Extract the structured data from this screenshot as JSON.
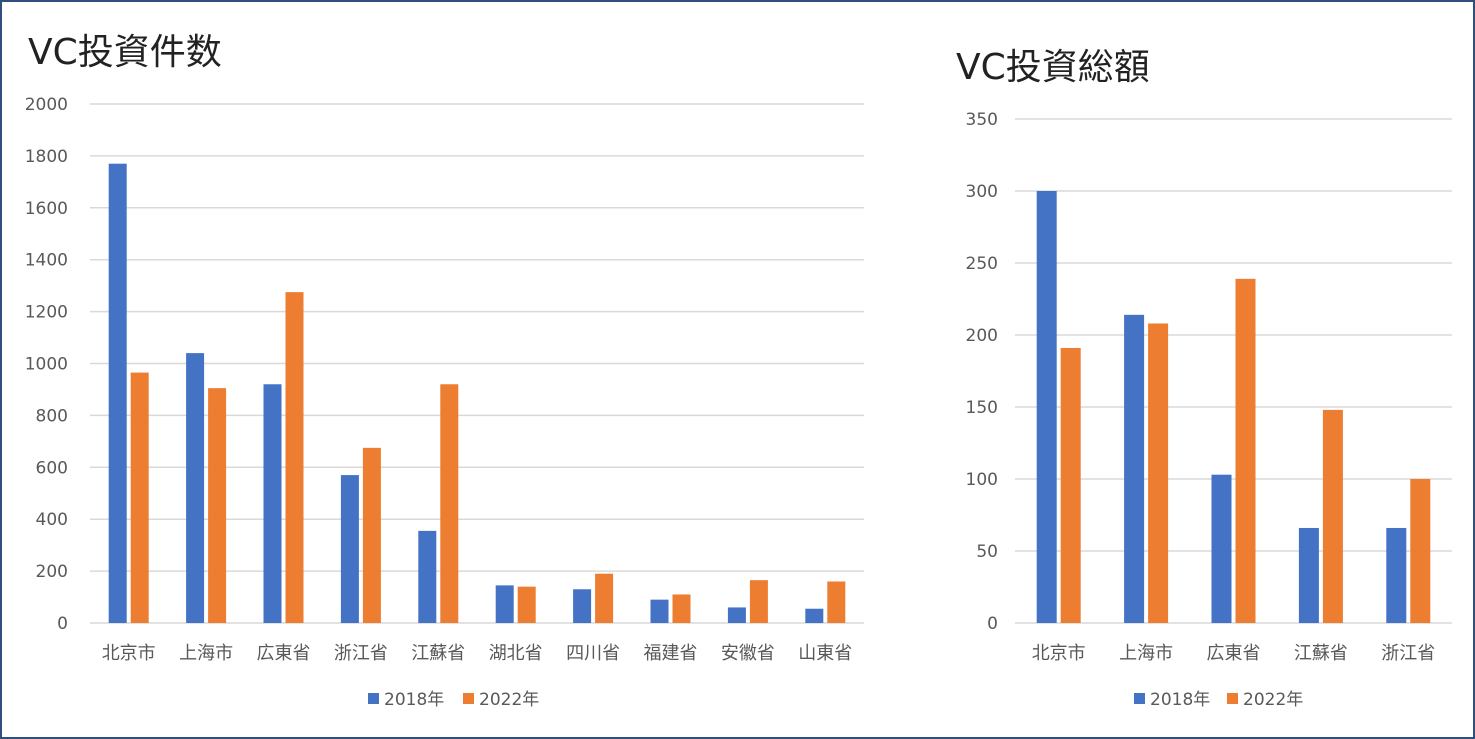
{
  "colors": {
    "series_2018": "#4472C4",
    "series_2022": "#ED7D31",
    "grid": "#D9D9D9",
    "text": "#595959"
  },
  "chart_data": [
    {
      "type": "bar",
      "title": "VC投資件数",
      "categories": [
        "北京市",
        "上海市",
        "広東省",
        "浙江省",
        "江蘇省",
        "湖北省",
        "四川省",
        "福建省",
        "安徽省",
        "山東省"
      ],
      "series": [
        {
          "name": "2018年",
          "values": [
            1770,
            1040,
            920,
            570,
            355,
            145,
            130,
            90,
            60,
            55
          ]
        },
        {
          "name": "2022年",
          "values": [
            965,
            905,
            1275,
            675,
            920,
            140,
            190,
            110,
            165,
            160
          ]
        }
      ],
      "yticks": [
        "0",
        "200",
        "400",
        "600",
        "800",
        "1000",
        "1200",
        "1400",
        "1600",
        "1800",
        "2000"
      ],
      "ylim": [
        0,
        2000
      ],
      "grid": true,
      "legend": "bottom"
    },
    {
      "type": "bar",
      "title": "VC投資総額",
      "categories": [
        "北京市",
        "上海市",
        "広東省",
        "江蘇省",
        "浙江省"
      ],
      "series": [
        {
          "name": "2018年",
          "values": [
            300,
            214,
            103,
            66,
            66
          ]
        },
        {
          "name": "2022年",
          "values": [
            191,
            208,
            239,
            148,
            100
          ]
        }
      ],
      "yticks": [
        "0",
        "50",
        "100",
        "150",
        "200",
        "250",
        "300",
        "350"
      ],
      "ylim": [
        0,
        350
      ],
      "grid": true,
      "legend": "bottom"
    }
  ]
}
